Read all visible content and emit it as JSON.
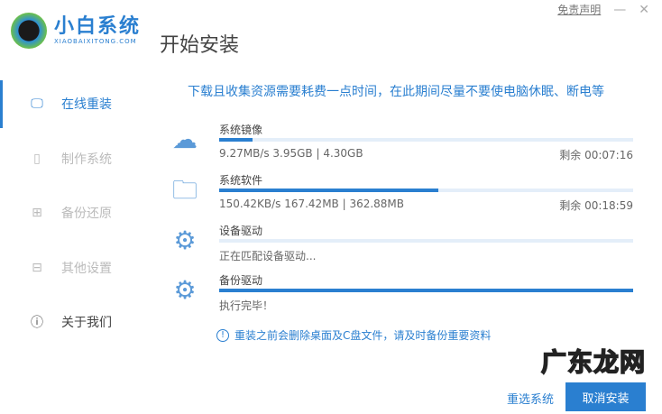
{
  "app": {
    "name": "小白系统",
    "domain": "XIAOBAIXITONG.COM",
    "page_title": "开始安装"
  },
  "topbar": {
    "disclaimer": "免责声明",
    "minimize": "—",
    "close": "✕"
  },
  "sidebar": {
    "items": [
      {
        "label": "在线重装",
        "icon": "monitor-icon",
        "active": true
      },
      {
        "label": "制作系统",
        "icon": "usb-icon"
      },
      {
        "label": "备份还原",
        "icon": "grid-icon"
      },
      {
        "label": "其他设置",
        "icon": "briefcase-icon"
      },
      {
        "label": "关于我们",
        "icon": "info-icon"
      }
    ]
  },
  "notice": "下载且收集资源需要耗费一点时间，在此期间尽量不要使电脑休眠、断电等",
  "tasks": [
    {
      "name": "系统镜像",
      "icon": "cloud-face-icon",
      "progress": 8,
      "info": "9.27MB/s 3.95GB | 4.30GB",
      "remain": "剩余 00:07:16"
    },
    {
      "name": "系统软件",
      "icon": "folder-apps-icon",
      "progress": 53,
      "info": "150.42KB/s 167.42MB | 362.88MB",
      "remain": "剩余 00:18:59"
    },
    {
      "name": "设备驱动",
      "icon": "gear-icon",
      "progress": 0,
      "info": "正在匹配设备驱动..."
    },
    {
      "name": "备份驱动",
      "icon": "gear-refresh-icon",
      "progress": 100,
      "info": "执行完毕！"
    }
  ],
  "warning": "重装之前会删除桌面及C盘文件，请及时备份重要资料",
  "buttons": {
    "reselect": "重选系统",
    "cancel": "取消安装"
  },
  "watermark": "广东龙网",
  "colors": {
    "accent": "#2a7fd0",
    "track": "#e4eef9"
  }
}
